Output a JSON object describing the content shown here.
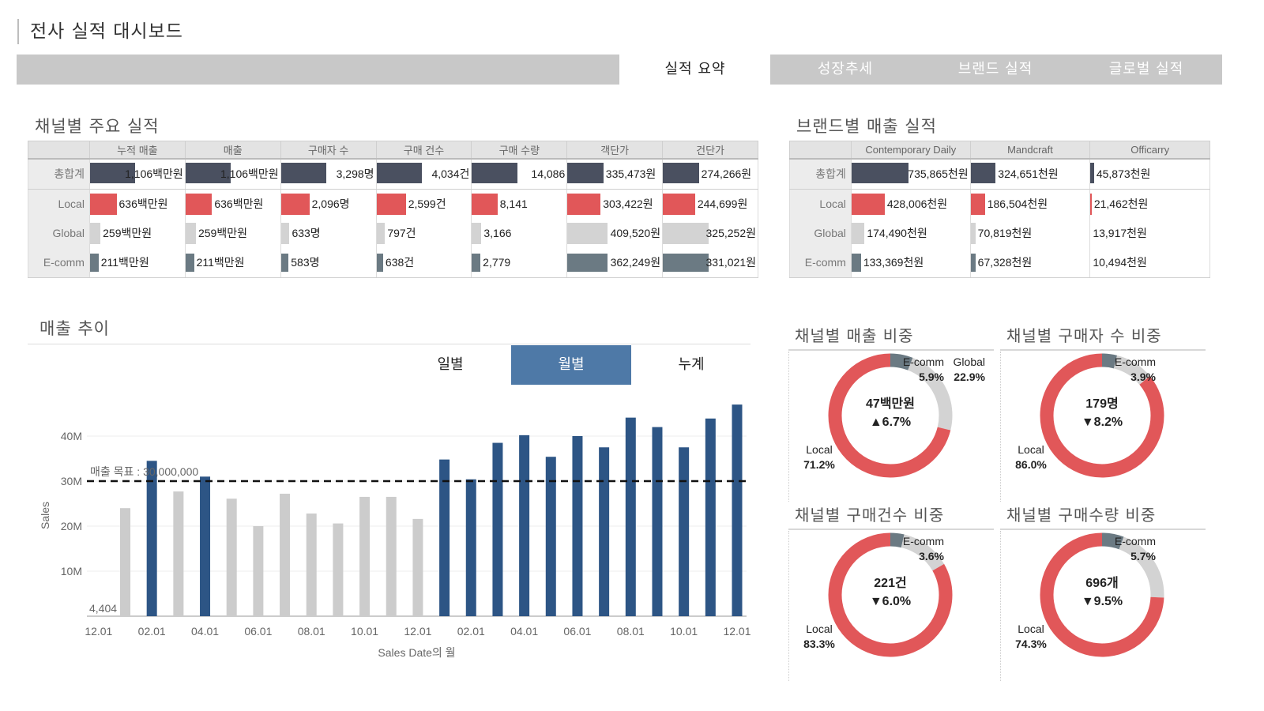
{
  "title": "전사 실적 대시보드",
  "tabs": [
    {
      "label": "실적 요약",
      "active": true
    },
    {
      "label": "성장추세",
      "active": false
    },
    {
      "label": "브랜드 실적",
      "active": false
    },
    {
      "label": "글로벌 실적",
      "active": false
    }
  ],
  "colors": {
    "total": "#4a5060",
    "local": "#e15759",
    "global": "#d3d3d3",
    "ecomm": "#6b7a83",
    "bar_dark": "#2d5585",
    "bar_light": "#cccccc",
    "active_toggle": "#4e79a7"
  },
  "channel_table": {
    "title": "채널별 주요 실적",
    "columns": [
      "누적 매출",
      "매출",
      "구매자 수",
      "구매 건수",
      "구매 수량",
      "객단가",
      "건단가"
    ],
    "rows": [
      {
        "label": "총합계",
        "cells": [
          "1,106백만원",
          "1,106백만원",
          "3,298명",
          "4,034건",
          "14,086",
          "335,473원",
          "274,266원"
        ],
        "fills": [
          0.48,
          0.48,
          0.48,
          0.48,
          0.48,
          0.38,
          0.38
        ]
      },
      {
        "label": "Local",
        "cells": [
          "636백만원",
          "636백만원",
          "2,096명",
          "2,599건",
          "8,141",
          "303,422원",
          "244,699원"
        ],
        "fills": [
          0.28,
          0.28,
          0.3,
          0.31,
          0.27,
          0.35,
          0.34
        ]
      },
      {
        "label": "Global",
        "cells": [
          "259백만원",
          "259백만원",
          "633명",
          "797건",
          "3,166",
          "409,520원",
          "325,252원"
        ],
        "fills": [
          0.11,
          0.11,
          0.09,
          0.09,
          0.1,
          0.42,
          0.48
        ]
      },
      {
        "label": "E-comm",
        "cells": [
          "211백만원",
          "211백만원",
          "583명",
          "638건",
          "2,779",
          "362,249원",
          "331,021원"
        ],
        "fills": [
          0.09,
          0.09,
          0.08,
          0.07,
          0.09,
          0.42,
          0.48
        ]
      }
    ]
  },
  "brand_table": {
    "title": "브랜드별 매출 실적",
    "columns": [
      "Contemporary Daily",
      "Mandcraft",
      "Officarry"
    ],
    "rows": [
      {
        "label": "총합계",
        "cells": [
          "735,865천원",
          "324,651천원",
          "45,873천원"
        ],
        "fills": [
          0.48,
          0.21,
          0.03
        ]
      },
      {
        "label": "Local",
        "cells": [
          "428,006천원",
          "186,504천원",
          "21,462천원"
        ],
        "fills": [
          0.28,
          0.12,
          0.01
        ]
      },
      {
        "label": "Global",
        "cells": [
          "174,490천원",
          "70,819천원",
          "13,917천원"
        ],
        "fills": [
          0.11,
          0.04,
          0.0
        ]
      },
      {
        "label": "E-comm",
        "cells": [
          "133,369천원",
          "67,328천원",
          "10,494천원"
        ],
        "fills": [
          0.08,
          0.04,
          0.0
        ]
      }
    ]
  },
  "trend": {
    "title": "매출 추이",
    "toggles": [
      {
        "label": "일별",
        "active": false
      },
      {
        "label": "월별",
        "active": true
      },
      {
        "label": "누계",
        "active": false
      }
    ],
    "target_label": "매출 목표 : 30,000,000",
    "first_value_label": "4,404",
    "ylabel": "Sales",
    "xlabel": "Sales Date의 월"
  },
  "chart_data": {
    "type": "bar",
    "categories": [
      "12.01",
      "01.01",
      "02.01",
      "03.01",
      "04.01",
      "05.01",
      "06.01",
      "07.01",
      "08.01",
      "09.01",
      "10.01",
      "11.01",
      "12.01",
      "01.01",
      "02.01",
      "03.01",
      "04.01",
      "05.01",
      "06.01",
      "07.01",
      "08.01",
      "09.01",
      "10.01",
      "11.01",
      "12.01"
    ],
    "values": [
      4404,
      24000000,
      34500000,
      27700000,
      31000000,
      26100000,
      20000000,
      27200000,
      22800000,
      20600000,
      26500000,
      26500000,
      21600000,
      34800000,
      30400000,
      38500000,
      40200000,
      35400000,
      40000000,
      37500000,
      44100000,
      42000000,
      37500000,
      43900000,
      47000000
    ],
    "highlight": [
      false,
      false,
      true,
      false,
      true,
      false,
      false,
      false,
      false,
      false,
      false,
      false,
      false,
      true,
      true,
      true,
      true,
      true,
      true,
      true,
      true,
      true,
      true,
      true,
      true
    ],
    "tick_labels": [
      "12.01",
      "02.01",
      "04.01",
      "06.01",
      "08.01",
      "10.01",
      "12.01",
      "02.01",
      "04.01",
      "06.01",
      "08.01",
      "10.01",
      "12.01"
    ],
    "y_ticks": [
      "10M",
      "20M",
      "30M",
      "40M"
    ],
    "y_tick_values": [
      10000000,
      20000000,
      30000000,
      40000000
    ],
    "ylim": [
      0,
      50000000
    ],
    "reference_line": 30000000,
    "xlabel": "Sales Date의 월",
    "ylabel": "Sales"
  },
  "donuts": [
    {
      "title": "채널별 매출 비중",
      "center_value": "47백만원",
      "center_change": "▲6.7%",
      "segments": [
        {
          "name": "E-comm",
          "pct": 5.9,
          "label": "5.9%"
        },
        {
          "name": "Global",
          "pct": 22.9,
          "label": "22.9%"
        },
        {
          "name": "Local",
          "pct": 71.2,
          "label": "71.2%"
        }
      ]
    },
    {
      "title": "채널별 구매자 수 비중",
      "center_value": "179명",
      "center_change": "▼8.2%",
      "segments": [
        {
          "name": "E-comm",
          "pct": 3.9,
          "label": "3.9%"
        },
        {
          "name": "Global",
          "pct": 10.1,
          "label": ""
        },
        {
          "name": "Local",
          "pct": 86.0,
          "label": "86.0%"
        }
      ]
    },
    {
      "title": "채널별 구매건수 비중",
      "center_value": "221건",
      "center_change": "▼6.0%",
      "segments": [
        {
          "name": "E-comm",
          "pct": 3.6,
          "label": "3.6%"
        },
        {
          "name": "Global",
          "pct": 13.1,
          "label": ""
        },
        {
          "name": "Local",
          "pct": 83.3,
          "label": "83.3%"
        }
      ]
    },
    {
      "title": "채널별 구매수량 비중",
      "center_value": "696개",
      "center_change": "▼9.5%",
      "segments": [
        {
          "name": "E-comm",
          "pct": 5.7,
          "label": "5.7%"
        },
        {
          "name": "Global",
          "pct": 20.0,
          "label": ""
        },
        {
          "name": "Local",
          "pct": 74.3,
          "label": "74.3%"
        }
      ]
    }
  ]
}
